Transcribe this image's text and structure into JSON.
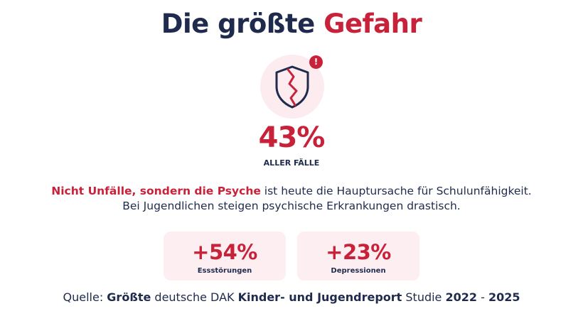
{
  "title": {
    "part1": "Die größte ",
    "part2": "Gefahr"
  },
  "hero": {
    "icon": "broken-shield-icon",
    "badge": "!",
    "percent": "43%",
    "label": "ALLER FÄLLE"
  },
  "description": {
    "highlight": "Nicht Unfälle, sondern die Psyche",
    "rest_line1": " ist heute die Hauptursache für Schulunfähigkeit.",
    "line2": "Bei Jugendlichen steigen psychische Erkrankungen drastisch."
  },
  "stats": [
    {
      "value": "+54%",
      "label": "Essstörungen"
    },
    {
      "value": "+23%",
      "label": "Depressionen"
    }
  ],
  "source": {
    "prefix": "Quelle: ",
    "b1": "Größte",
    "t1": " deutsche DAK ",
    "b2": "Kinder- und Jugendreport",
    "t2": " Studie ",
    "b3": "2022",
    "t3": " - ",
    "b4": "2025"
  },
  "colors": {
    "accent": "#c8223a",
    "navy": "#1f2b4d",
    "card_bg": "#fdeef1"
  }
}
